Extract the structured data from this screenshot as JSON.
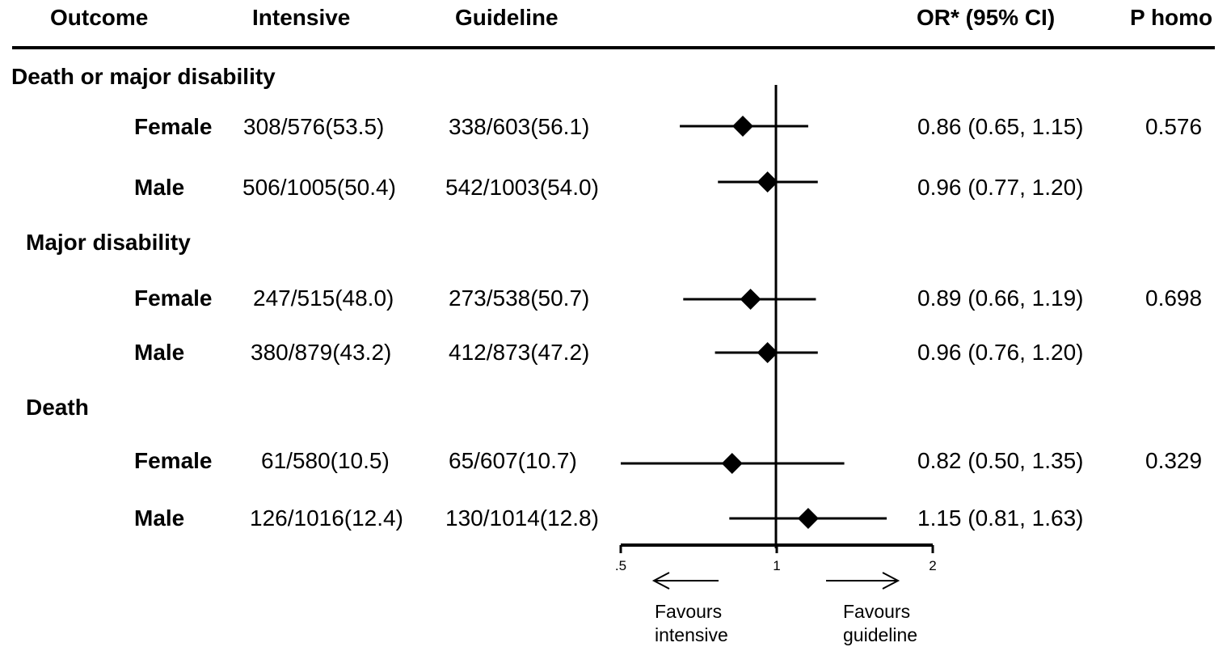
{
  "headers": {
    "outcome": "Outcome",
    "intensive": "Intensive",
    "guideline": "Guideline",
    "or": "OR* (95% CI)",
    "p": "P homo"
  },
  "groups": [
    {
      "title": "Death or major disability",
      "rows": [
        {
          "label": "Female",
          "intensive": "308/576(53.5)",
          "guideline": "338/603(56.1)",
          "or_text": "0.86 (0.65, 1.15)",
          "p": "0.576"
        },
        {
          "label": "Male",
          "intensive": "506/1005(50.4)",
          "guideline": "542/1003(54.0)",
          "or_text": "0.96 (0.77, 1.20)",
          "p": ""
        }
      ]
    },
    {
      "title": "Major disability",
      "rows": [
        {
          "label": "Female",
          "intensive": "247/515(48.0)",
          "guideline": "273/538(50.7)",
          "or_text": "0.89 (0.66, 1.19)",
          "p": "0.698"
        },
        {
          "label": "Male",
          "intensive": "380/879(43.2)",
          "guideline": "412/873(47.2)",
          "or_text": "0.96 (0.76, 1.20)",
          "p": ""
        }
      ]
    },
    {
      "title": "Death",
      "rows": [
        {
          "label": "Female",
          "intensive": "61/580(10.5)",
          "guideline": "65/607(10.7)",
          "or_text": "0.82 (0.50, 1.35)",
          "p": "0.329"
        },
        {
          "label": "Male",
          "intensive": "126/1016(12.4)",
          "guideline": "130/1014(12.8)",
          "or_text": "1.15 (0.81, 1.63)",
          "p": ""
        }
      ]
    }
  ],
  "chart_data": {
    "type": "scatter",
    "subtype": "forest",
    "x_scale": "log",
    "reference_line": 1,
    "xlim": [
      0.5,
      2
    ],
    "x_ticks": [
      0.5,
      1,
      2
    ],
    "x_tick_labels": [
      ".5",
      "1",
      "2"
    ],
    "points": [
      {
        "label": "Death or major disability - Female",
        "or": 0.86,
        "lower": 0.65,
        "upper": 1.15
      },
      {
        "label": "Death or major disability - Male",
        "or": 0.96,
        "lower": 0.77,
        "upper": 1.2
      },
      {
        "label": "Major disability - Female",
        "or": 0.89,
        "lower": 0.66,
        "upper": 1.19
      },
      {
        "label": "Major disability - Male",
        "or": 0.96,
        "lower": 0.76,
        "upper": 1.2
      },
      {
        "label": "Death - Female",
        "or": 0.82,
        "lower": 0.5,
        "upper": 1.35
      },
      {
        "label": "Death - Male",
        "or": 1.15,
        "lower": 0.81,
        "upper": 1.63
      }
    ],
    "favours_left": [
      "Favours",
      "intensive"
    ],
    "favours_right": [
      "Favours",
      "guideline"
    ]
  }
}
